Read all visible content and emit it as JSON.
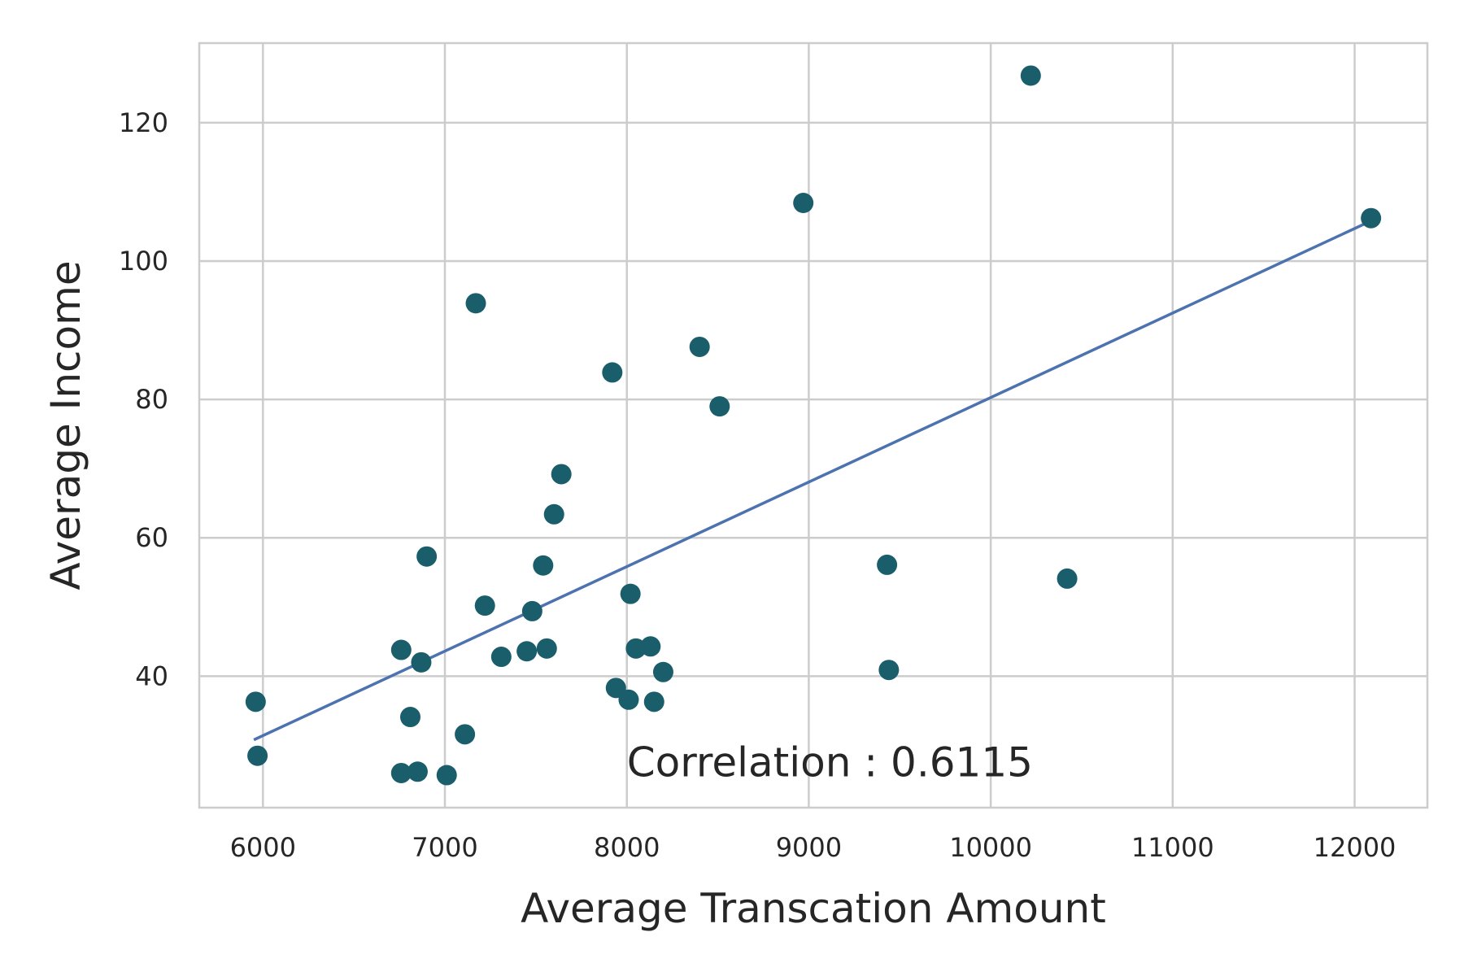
{
  "chart_data": {
    "type": "scatter",
    "xlabel": "Average Transcation Amount",
    "ylabel": "Average Income",
    "xlim": [
      5650,
      12400
    ],
    "ylim": [
      21,
      131.5
    ],
    "xticks": [
      6000,
      7000,
      8000,
      9000,
      10000,
      11000,
      12000
    ],
    "yticks": [
      40,
      60,
      80,
      100,
      120
    ],
    "grid": true,
    "annotation": "Correlation : 0.6115",
    "annotation_pos": {
      "x": 8000,
      "y": 25.5
    },
    "point_color": "#1b5e6b",
    "line_color": "#4c72b0",
    "points": [
      {
        "x": 5960,
        "y": 36.3
      },
      {
        "x": 5970,
        "y": 28.5
      },
      {
        "x": 6760,
        "y": 43.8
      },
      {
        "x": 6760,
        "y": 26.0
      },
      {
        "x": 6810,
        "y": 34.1
      },
      {
        "x": 6850,
        "y": 26.2
      },
      {
        "x": 6870,
        "y": 42.0
      },
      {
        "x": 6900,
        "y": 57.3
      },
      {
        "x": 7010,
        "y": 25.7
      },
      {
        "x": 7110,
        "y": 31.6
      },
      {
        "x": 7170,
        "y": 93.9
      },
      {
        "x": 7220,
        "y": 50.2
      },
      {
        "x": 7310,
        "y": 42.8
      },
      {
        "x": 7450,
        "y": 43.6
      },
      {
        "x": 7480,
        "y": 49.4
      },
      {
        "x": 7540,
        "y": 56.0
      },
      {
        "x": 7560,
        "y": 44.0
      },
      {
        "x": 7600,
        "y": 63.4
      },
      {
        "x": 7640,
        "y": 69.2
      },
      {
        "x": 7920,
        "y": 83.9
      },
      {
        "x": 7940,
        "y": 38.3
      },
      {
        "x": 8010,
        "y": 36.6
      },
      {
        "x": 8020,
        "y": 51.9
      },
      {
        "x": 8050,
        "y": 44.0
      },
      {
        "x": 8130,
        "y": 44.3
      },
      {
        "x": 8150,
        "y": 36.3
      },
      {
        "x": 8200,
        "y": 40.6
      },
      {
        "x": 8400,
        "y": 87.6
      },
      {
        "x": 8510,
        "y": 79.0
      },
      {
        "x": 8970,
        "y": 108.4
      },
      {
        "x": 9430,
        "y": 56.1
      },
      {
        "x": 9440,
        "y": 40.9
      },
      {
        "x": 10220,
        "y": 126.8
      },
      {
        "x": 10420,
        "y": 54.1
      },
      {
        "x": 12090,
        "y": 106.2
      }
    ],
    "regression_line": [
      {
        "x": 5950,
        "y": 30.8
      },
      {
        "x": 12090,
        "y": 105.8
      }
    ]
  }
}
